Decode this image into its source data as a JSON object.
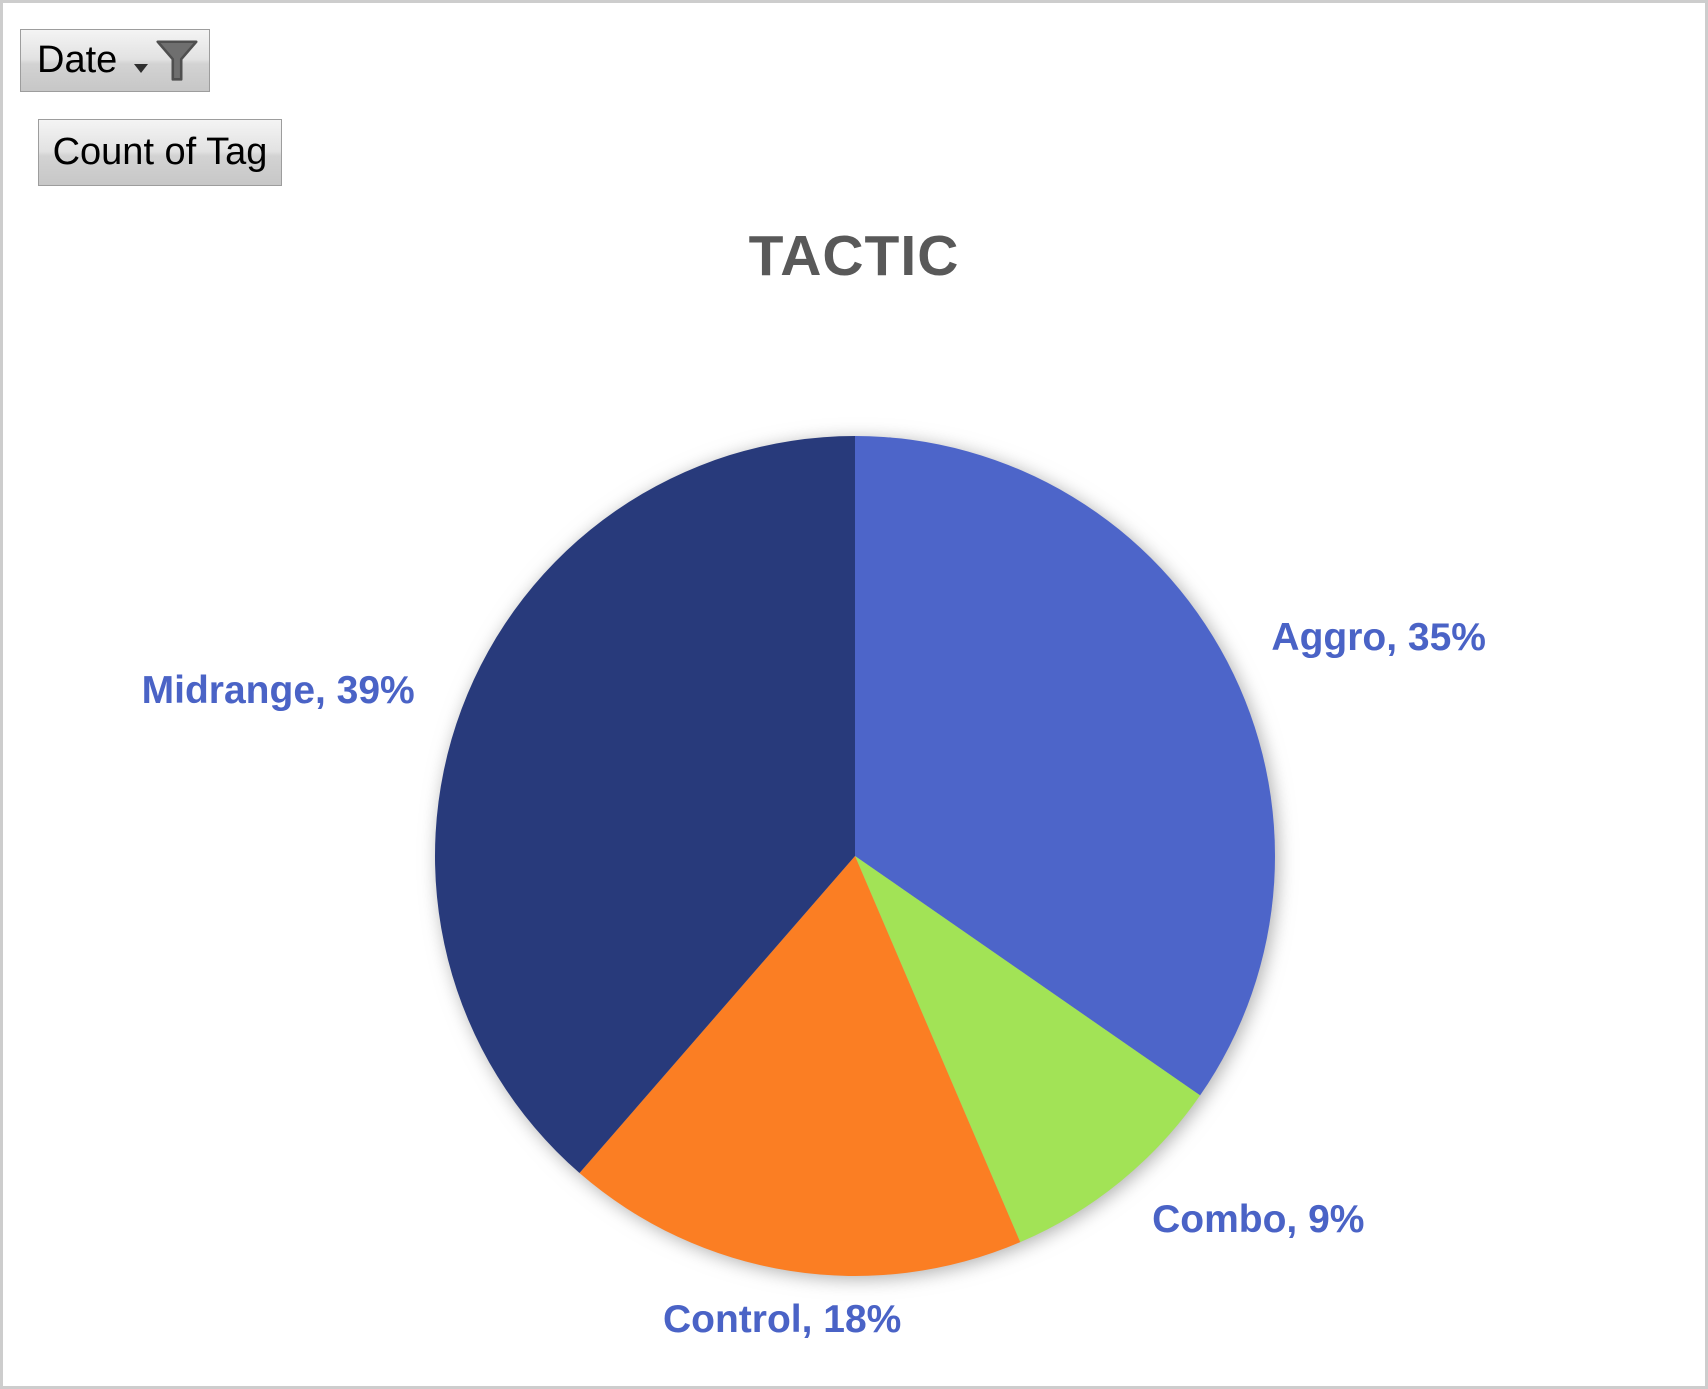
{
  "pivot_buttons": {
    "filter_button": {
      "label": "Date",
      "icons": [
        "chevron-down-icon",
        "filter-funnel-icon"
      ]
    },
    "value_button": {
      "label": "Count of Tag"
    }
  },
  "chart_data": {
    "type": "pie",
    "title": "TACTIC",
    "categories": [
      "Aggro",
      "Combo",
      "Control",
      "Midrange"
    ],
    "values": [
      35,
      9,
      18,
      39
    ],
    "unit": "%",
    "labels": [
      "Aggro, 35%",
      "Combo, 9%",
      "Control, 18%",
      "Midrange, 39%"
    ],
    "colors": [
      "#4D65C9",
      "#A2E356",
      "#FB7E23",
      "#283A7B"
    ],
    "start_angle_deg": 0,
    "direction": "clockwise",
    "legend": "none",
    "label_position": "outside-end",
    "label_color": "#4A63C6",
    "title_color": "#595959"
  }
}
